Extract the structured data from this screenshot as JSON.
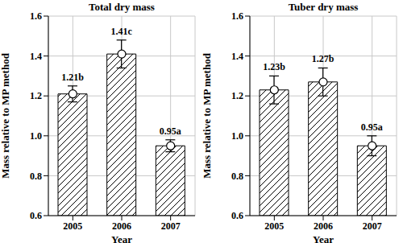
{
  "chart_data": [
    {
      "type": "bar",
      "title": "Total dry mass",
      "x_label": "Year",
      "y_label": "Mass relative to MP method",
      "categories": [
        "2005",
        "2006",
        "2007"
      ],
      "values": [
        1.21,
        1.41,
        0.95
      ],
      "value_labels": [
        "1.21b",
        "1.41c",
        "0.95a"
      ],
      "errors": [
        0.04,
        0.07,
        0.03
      ],
      "color": "#000000",
      "marker": "circle",
      "data_labels": true,
      "grid": true,
      "ylim": [
        0.6,
        1.6
      ],
      "yticks": [
        0.6,
        0.8,
        {
          "value": 1,
          "label": "1.0"
        },
        1.2,
        1.4,
        1.6
      ]
    },
    {
      "type": "bar",
      "title": "Tuber dry mass",
      "x_label": "Year",
      "y_label": "Mass relative to MP method",
      "categories": [
        "2005",
        "2006",
        "2007"
      ],
      "values": [
        1.23,
        1.27,
        0.95
      ],
      "value_labels": [
        "1.23b",
        "1.27b",
        "0.95a"
      ],
      "errors": [
        0.07,
        0.07,
        0.05
      ],
      "color": "#000000",
      "marker": "circle",
      "data_labels": true,
      "grid": true,
      "ylim": [
        0.6,
        1.6
      ],
      "yticks": [
        0.6,
        0.8,
        {
          "value": 1,
          "label": "1.0"
        },
        1.2,
        1.4,
        1.6
      ]
    }
  ]
}
